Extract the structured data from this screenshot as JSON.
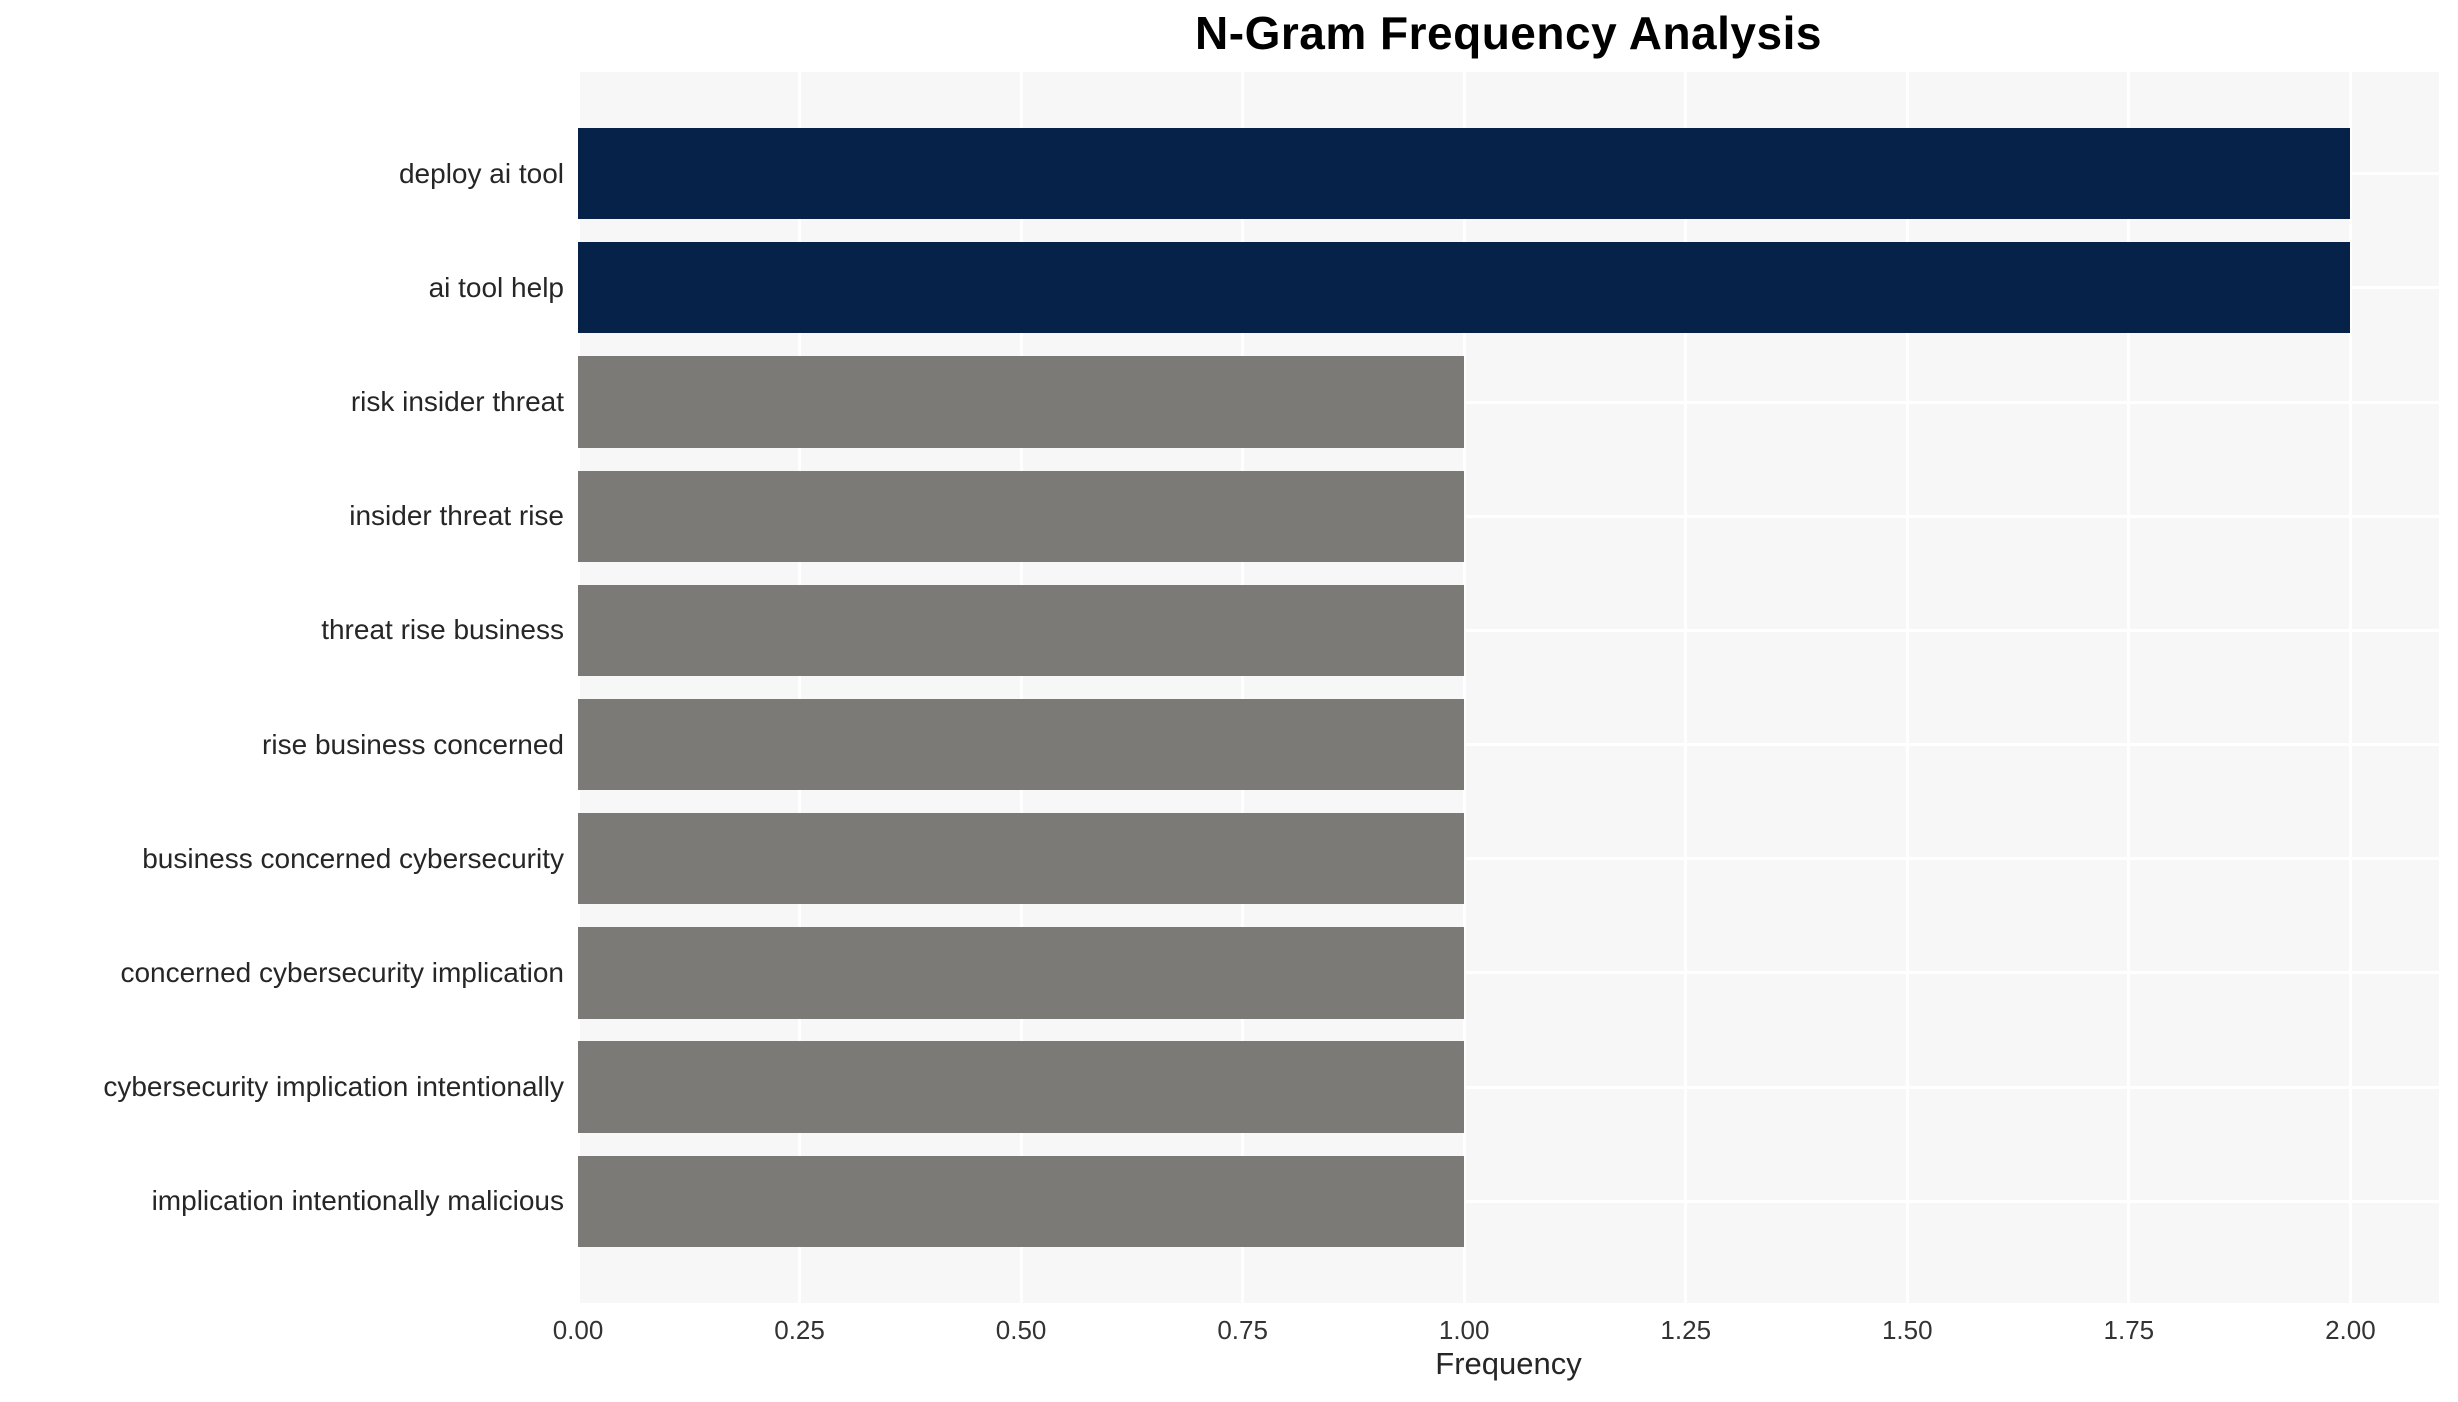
{
  "chart_data": {
    "type": "bar",
    "orientation": "horizontal",
    "title": "N-Gram Frequency Analysis",
    "xlabel": "Frequency",
    "ylabel": "",
    "categories": [
      "deploy ai tool",
      "ai tool help",
      "risk insider threat",
      "insider threat rise",
      "threat rise business",
      "rise business concerned",
      "business concerned cybersecurity",
      "concerned cybersecurity implication",
      "cybersecurity implication intentionally",
      "implication intentionally malicious"
    ],
    "values": [
      2,
      2,
      1,
      1,
      1,
      1,
      1,
      1,
      1,
      1
    ],
    "bar_colors": [
      "#062249",
      "#062249",
      "#7b7a77",
      "#7b7a77",
      "#7b7a77",
      "#7b7a77",
      "#7b7a77",
      "#7b7a77",
      "#7b7a77",
      "#7b7a77"
    ],
    "xlim": [
      0,
      2.1
    ],
    "xticks": {
      "values": [
        0,
        0.25,
        0.5,
        0.75,
        1.0,
        1.25,
        1.5,
        1.75,
        2.0
      ],
      "labels": [
        "0.00",
        "0.25",
        "0.50",
        "0.75",
        "1.00",
        "1.25",
        "1.50",
        "1.75",
        "2.00"
      ]
    },
    "grid": true,
    "legend": false,
    "styles": {
      "plot_bg": "#f7f7f7",
      "grid_color": "#ffffff",
      "bar_highlight": "#062249",
      "bar_normal": "#7b7a77",
      "text_color": "#262626",
      "title_color": "#000000"
    }
  }
}
